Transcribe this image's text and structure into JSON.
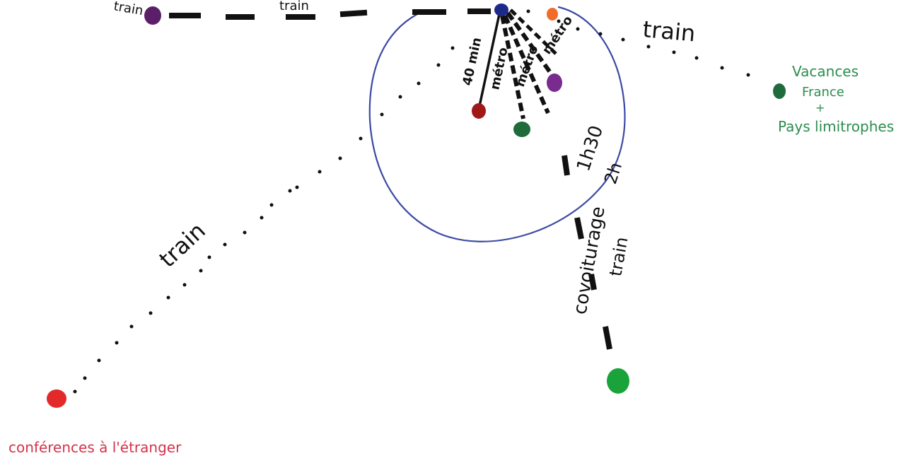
{
  "colors": {
    "background": "#ffffff",
    "ink": "#111111",
    "circle": "#3d4aa3",
    "green_text": "#2c8d4d",
    "red_text": "#d4334a",
    "node_purple": "#5b1f6a",
    "node_blue": "#1d2a8a",
    "node_orange": "#f16b2a",
    "node_darkgreen": "#1f6b3b",
    "node_green": "#19a33a",
    "node_red": "#e32a2a",
    "node_darkred": "#a01818",
    "node_violet": "#7a2b8f"
  },
  "labels": {
    "top_left_partial": "train",
    "top_partial": "train",
    "train_top_right": "train",
    "train_left": "train",
    "vacances_line1": "Vacances",
    "vacances_line2": "France",
    "vacances_plus": "+",
    "vacances_line3": "Pays limitrophes",
    "conferences": "conférences à l'étranger",
    "covoiturage": "covoiturage",
    "train_vertical": "train",
    "duration_1": "1h30",
    "duration_2": "2h",
    "duration_40": "40 min",
    "metro_1": "métro",
    "metro_2": "métro",
    "metro_3": "métro"
  }
}
